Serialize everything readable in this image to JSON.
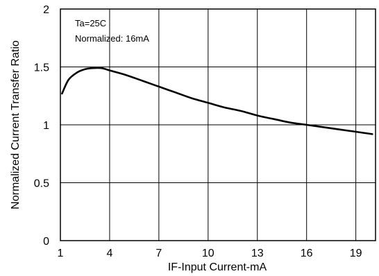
{
  "chart_data": {
    "type": "line",
    "title": "",
    "xlabel": "IF-Input Current-mA",
    "ylabel": "Normalized Current Transfer Ratio",
    "xlim": [
      1,
      20.2
    ],
    "ylim": [
      0,
      2
    ],
    "grid": true,
    "xticks": [
      1,
      4,
      7,
      10,
      13,
      16,
      19
    ],
    "xtick_labels": [
      "1",
      "4",
      "7",
      "10",
      "13",
      "16",
      "19"
    ],
    "yticks": [
      0,
      0.5,
      1,
      1.5,
      2
    ],
    "ytick_labels": [
      "0",
      "0.5",
      "1",
      "1.5",
      "2"
    ],
    "annotations": [
      "Ta=25C",
      "Normalized: 16mA"
    ],
    "series": [
      {
        "x": [
          1.1,
          1.5,
          2.0,
          2.5,
          3.0,
          3.5,
          4.0,
          5.0,
          6.0,
          7.0,
          8.0,
          9.0,
          10.0,
          11.0,
          12.0,
          13.0,
          14.0,
          15.0,
          16.0,
          17.0,
          18.0,
          19.0,
          20.0
        ],
        "y": [
          1.27,
          1.39,
          1.45,
          1.48,
          1.49,
          1.49,
          1.47,
          1.43,
          1.38,
          1.33,
          1.28,
          1.23,
          1.19,
          1.15,
          1.12,
          1.08,
          1.05,
          1.02,
          1.0,
          0.98,
          0.96,
          0.94,
          0.92
        ]
      }
    ]
  }
}
